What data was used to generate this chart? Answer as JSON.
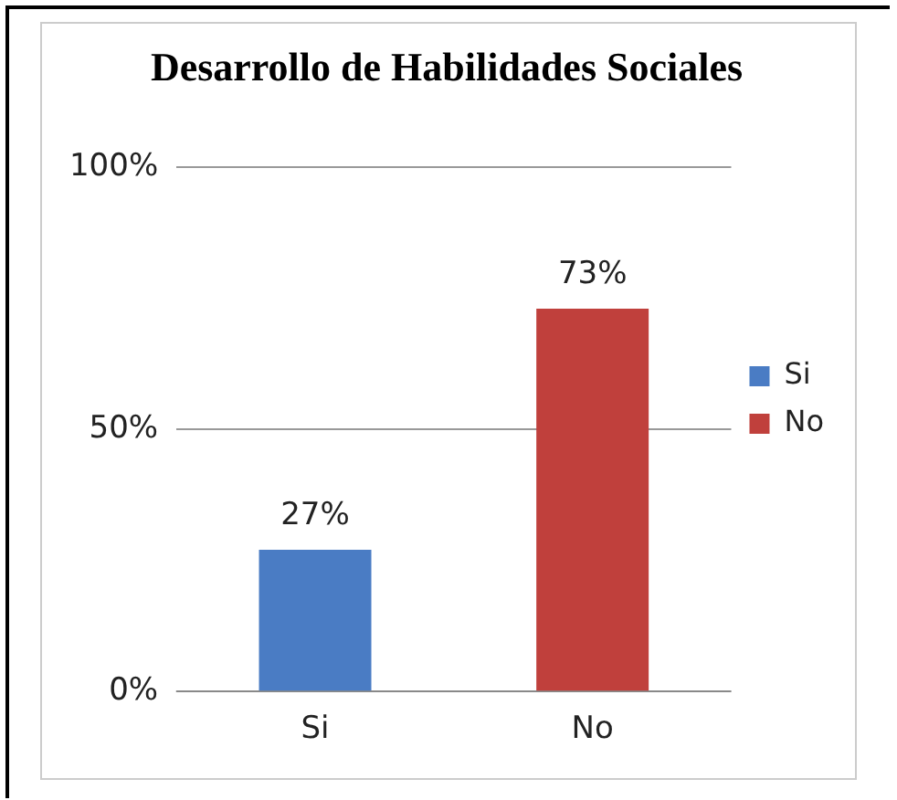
{
  "chart_data": {
    "type": "bar",
    "title": "Desarrollo de Habilidades Sociales",
    "categories": [
      "Si",
      "No"
    ],
    "series": [
      {
        "name": "Si",
        "color": "#4a7cc4",
        "values": [
          27,
          null
        ],
        "value_labels": [
          "27%",
          null
        ]
      },
      {
        "name": "No",
        "color": "#c0403c",
        "values": [
          null,
          73
        ],
        "value_labels": [
          null,
          "73%"
        ]
      }
    ],
    "ylim": [
      0,
      100
    ],
    "yticks": [
      {
        "value": 0,
        "label": "0%"
      },
      {
        "value": 50,
        "label": "50%"
      },
      {
        "value": 100,
        "label": "100%"
      }
    ],
    "grid": "y",
    "legend": "right"
  }
}
